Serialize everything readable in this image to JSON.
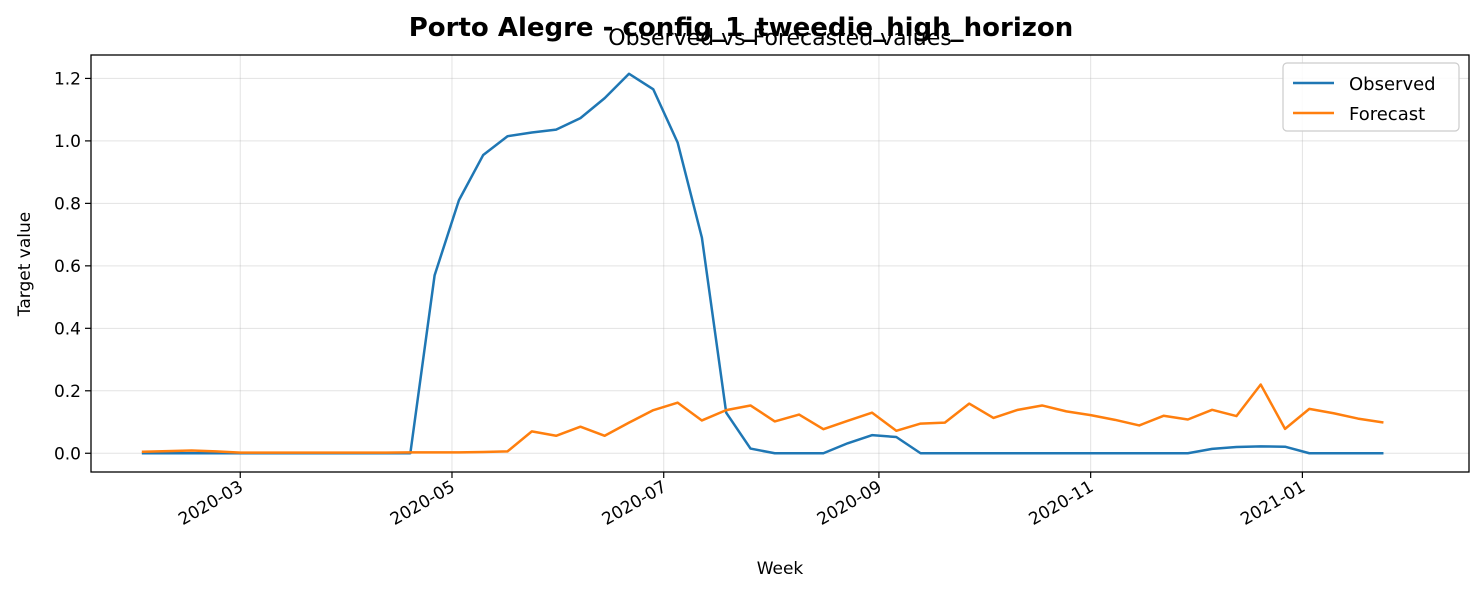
{
  "chart_data": {
    "type": "line",
    "title": "Porto Alegre - config_1_tweedie_high_horizon",
    "subtitle": "Observed vs Forecasted values",
    "xlabel": "Week",
    "ylabel": "Target value",
    "xlim": [
      "2020-01-18",
      "2021-02-18"
    ],
    "ylim": [
      -0.06,
      1.275
    ],
    "grid": true,
    "legend_position": "upper-right",
    "x_ticks": [
      "2020-03",
      "2020-05",
      "2020-07",
      "2020-09",
      "2020-11",
      "2021-01"
    ],
    "y_ticks": [
      "0.0",
      "0.2",
      "0.4",
      "0.6",
      "0.8",
      "1.0",
      "1.2"
    ],
    "x": [
      "2020-02-02",
      "2020-02-09",
      "2020-02-16",
      "2020-02-23",
      "2020-03-01",
      "2020-03-08",
      "2020-03-15",
      "2020-03-22",
      "2020-03-29",
      "2020-04-05",
      "2020-04-12",
      "2020-04-19",
      "2020-04-26",
      "2020-05-03",
      "2020-05-10",
      "2020-05-17",
      "2020-05-24",
      "2020-05-31",
      "2020-06-07",
      "2020-06-14",
      "2020-06-21",
      "2020-06-28",
      "2020-07-05",
      "2020-07-12",
      "2020-07-19",
      "2020-07-26",
      "2020-08-02",
      "2020-08-09",
      "2020-08-16",
      "2020-08-23",
      "2020-08-30",
      "2020-09-06",
      "2020-09-13",
      "2020-09-20",
      "2020-09-27",
      "2020-10-04",
      "2020-10-11",
      "2020-10-18",
      "2020-10-25",
      "2020-11-01",
      "2020-11-08",
      "2020-11-15",
      "2020-11-22",
      "2020-11-29",
      "2020-12-06",
      "2020-12-13",
      "2020-12-20",
      "2020-12-27",
      "2021-01-03",
      "2021-01-10",
      "2021-01-17",
      "2021-01-24"
    ],
    "series": [
      {
        "name": "Observed",
        "color": "#1f77b4",
        "values": [
          0.0,
          0.0,
          0.0,
          0.0,
          0.0,
          0.0,
          0.0,
          0.0,
          0.0,
          0.0,
          0.0,
          0.0,
          0.57,
          0.81,
          0.955,
          1.015,
          1.027,
          1.036,
          1.073,
          1.137,
          1.215,
          1.165,
          0.995,
          0.69,
          0.13,
          0.015,
          0.0,
          0.0,
          0.0,
          0.032,
          0.058,
          0.052,
          0.0,
          0.0,
          0.0,
          0.0,
          0.0,
          0.0,
          0.0,
          0.0,
          0.0,
          0.0,
          0.0,
          0.0,
          0.014,
          0.02,
          0.022,
          0.021,
          0.0,
          0.0,
          0.0,
          0.0
        ]
      },
      {
        "name": "Forecast",
        "color": "#ff7f0e",
        "values": [
          0.005,
          0.007,
          0.009,
          0.006,
          0.002,
          0.002,
          0.002,
          0.002,
          0.002,
          0.002,
          0.002,
          0.003,
          0.003,
          0.003,
          0.004,
          0.006,
          0.07,
          0.056,
          0.085,
          0.056,
          0.098,
          0.138,
          0.162,
          0.105,
          0.138,
          0.153,
          0.102,
          0.124,
          0.077,
          0.104,
          0.13,
          0.072,
          0.095,
          0.098,
          0.159,
          0.113,
          0.139,
          0.153,
          0.134,
          0.122,
          0.107,
          0.089,
          0.12,
          0.108,
          0.139,
          0.119,
          0.22,
          0.078,
          0.142,
          0.128,
          0.111,
          0.099
        ]
      }
    ]
  }
}
